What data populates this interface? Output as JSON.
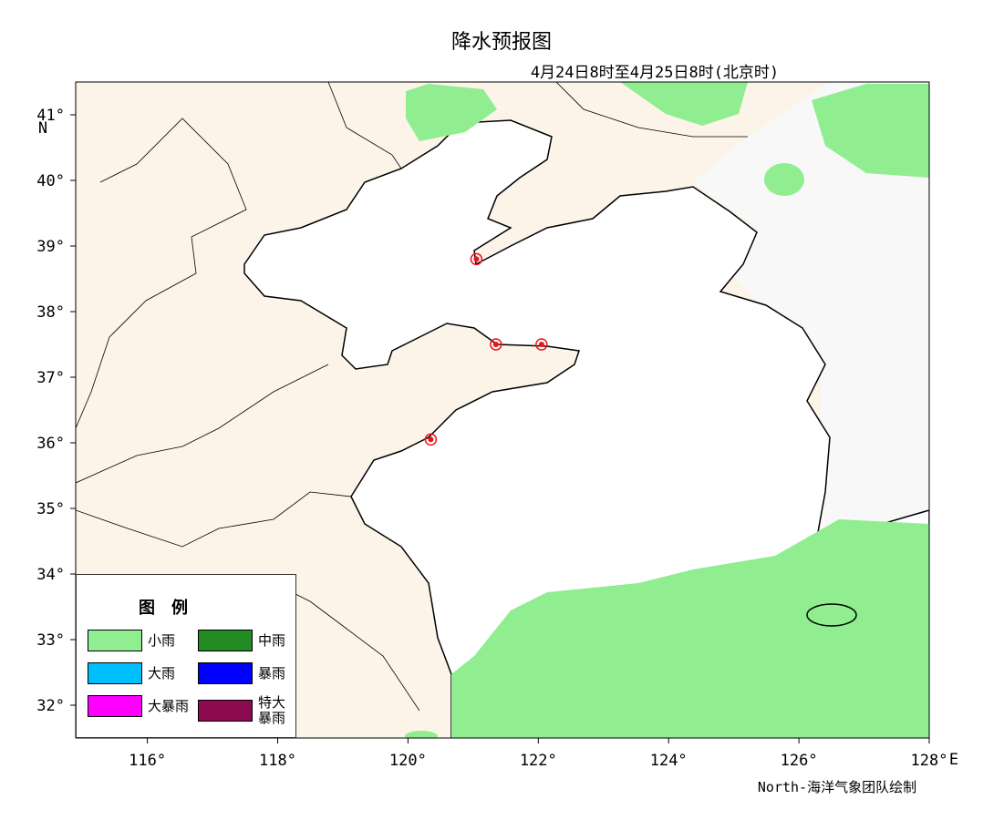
{
  "map": {
    "title": "降水预报图",
    "subtitle": "4月24日8时至4月25日8时(北京时)",
    "credit": "North-海洋气象团队绘制",
    "xlim": [
      114.9,
      128
    ],
    "ylim": [
      31.5,
      41.5
    ],
    "xticks": [
      {
        "value": 116,
        "label": "116°"
      },
      {
        "value": 118,
        "label": "118°"
      },
      {
        "value": 120,
        "label": "120°"
      },
      {
        "value": 122,
        "label": "122°"
      },
      {
        "value": 124,
        "label": "124°"
      },
      {
        "value": 126,
        "label": "126°"
      },
      {
        "value": 128,
        "label": "128°"
      }
    ],
    "yticks": [
      {
        "value": 32,
        "label": "32°"
      },
      {
        "value": 33,
        "label": "33°"
      },
      {
        "value": 34,
        "label": "34°"
      },
      {
        "value": 35,
        "label": "35°"
      },
      {
        "value": 36,
        "label": "36°"
      },
      {
        "value": 37,
        "label": "37°"
      },
      {
        "value": 38,
        "label": "38°"
      },
      {
        "value": 39,
        "label": "39°"
      },
      {
        "value": 40,
        "label": "40°"
      },
      {
        "value": 41,
        "label": "41°"
      }
    ],
    "x_unit": "E",
    "y_unit": "N",
    "stations": {
      "lon": [
        121.05,
        121.35,
        122.05,
        120.35
      ],
      "lat": [
        38.8,
        37.5,
        37.5,
        36.05
      ],
      "color": "#e8141c"
    },
    "legend": {
      "title": "图　例",
      "items": [
        {
          "name": "小雨",
          "color": "#90ee90"
        },
        {
          "name": "中雨",
          "color": "#228b22"
        },
        {
          "name": "大雨",
          "color": "#00bfff"
        },
        {
          "name": "暴雨",
          "color": "#0000ff"
        },
        {
          "name": "大暴雨",
          "color": "#ff00ff"
        },
        {
          "name": "特大暴雨",
          "color": "#8b0a50"
        }
      ]
    }
  }
}
